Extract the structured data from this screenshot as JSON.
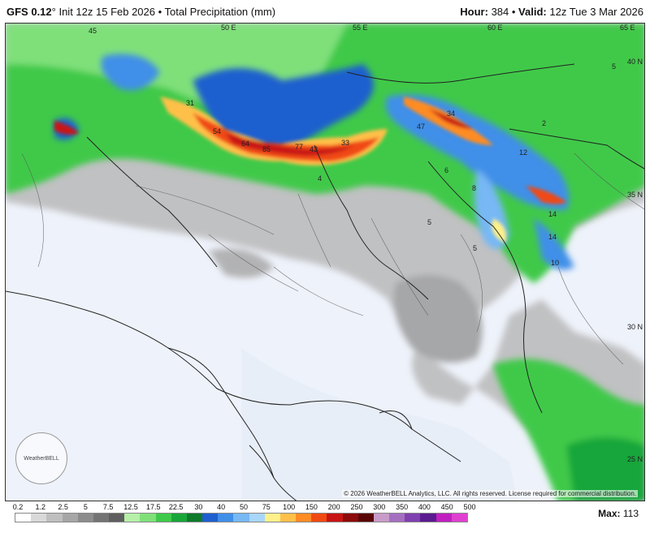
{
  "header": {
    "model": "GFS 0.12",
    "degree": "°",
    "run_info": "Init 12z 15 Feb 2026 • Total Precipitation (mm)",
    "hour_label": "Hour:",
    "hour_value": "384",
    "valid_label": "Valid:",
    "valid_value": "12z Tue 3 Mar 2026"
  },
  "map": {
    "grid_labels": [
      "45",
      "50 E",
      "55 E",
      "60 E",
      "65 E",
      "40 N",
      "35 N",
      "30 N",
      "25 N"
    ],
    "value_labels": [
      "31",
      "54",
      "64",
      "85",
      "43",
      "77",
      "33",
      "34",
      "47",
      "12",
      "14",
      "14",
      "10",
      "2",
      "5",
      "5",
      "4",
      "8",
      "6",
      "5"
    ],
    "copyright": "© 2026 WeatherBELL Analytics, LLC. All rights reserved. License required for commercial distribution.",
    "logo_text": "WeatherBELL"
  },
  "legend": {
    "ticks": [
      "0.2",
      "1.2",
      "2.5",
      "5",
      "7.5",
      "12.5",
      "17.5",
      "22.5",
      "30",
      "40",
      "50",
      "75",
      "100",
      "150",
      "200",
      "250",
      "300",
      "350",
      "400",
      "450",
      "500"
    ],
    "colors": [
      "#ffffff",
      "#d9d9d9",
      "#bfbfbf",
      "#a6a6a6",
      "#8c8c8c",
      "#737373",
      "#5e5e5e",
      "#b6f0a8",
      "#7fe07a",
      "#3fc94a",
      "#18a63a",
      "#0f7a2a",
      "#1f5fcf",
      "#3f8fe8",
      "#77b8f5",
      "#a9d6fb",
      "#fff08a",
      "#ffc04a",
      "#ff8c24",
      "#f04a12",
      "#c81414",
      "#8c0a0a",
      "#5a0505",
      "#c89bc8",
      "#a56fc0",
      "#8040b0",
      "#5a1a90",
      "#c020c0",
      "#e040d0"
    ],
    "max_label": "Max:",
    "max_value": "113"
  }
}
